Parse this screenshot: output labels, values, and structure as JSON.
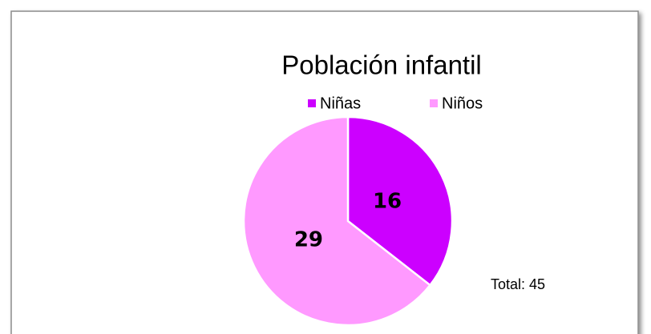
{
  "chart_data": {
    "type": "pie",
    "title": "Población infantil",
    "categories": [
      "Niñas",
      "Niños"
    ],
    "values": [
      16,
      29
    ],
    "colors": [
      "#cc00ff",
      "#ff99ff"
    ],
    "legend": "top",
    "annotation": "Total: 45"
  }
}
